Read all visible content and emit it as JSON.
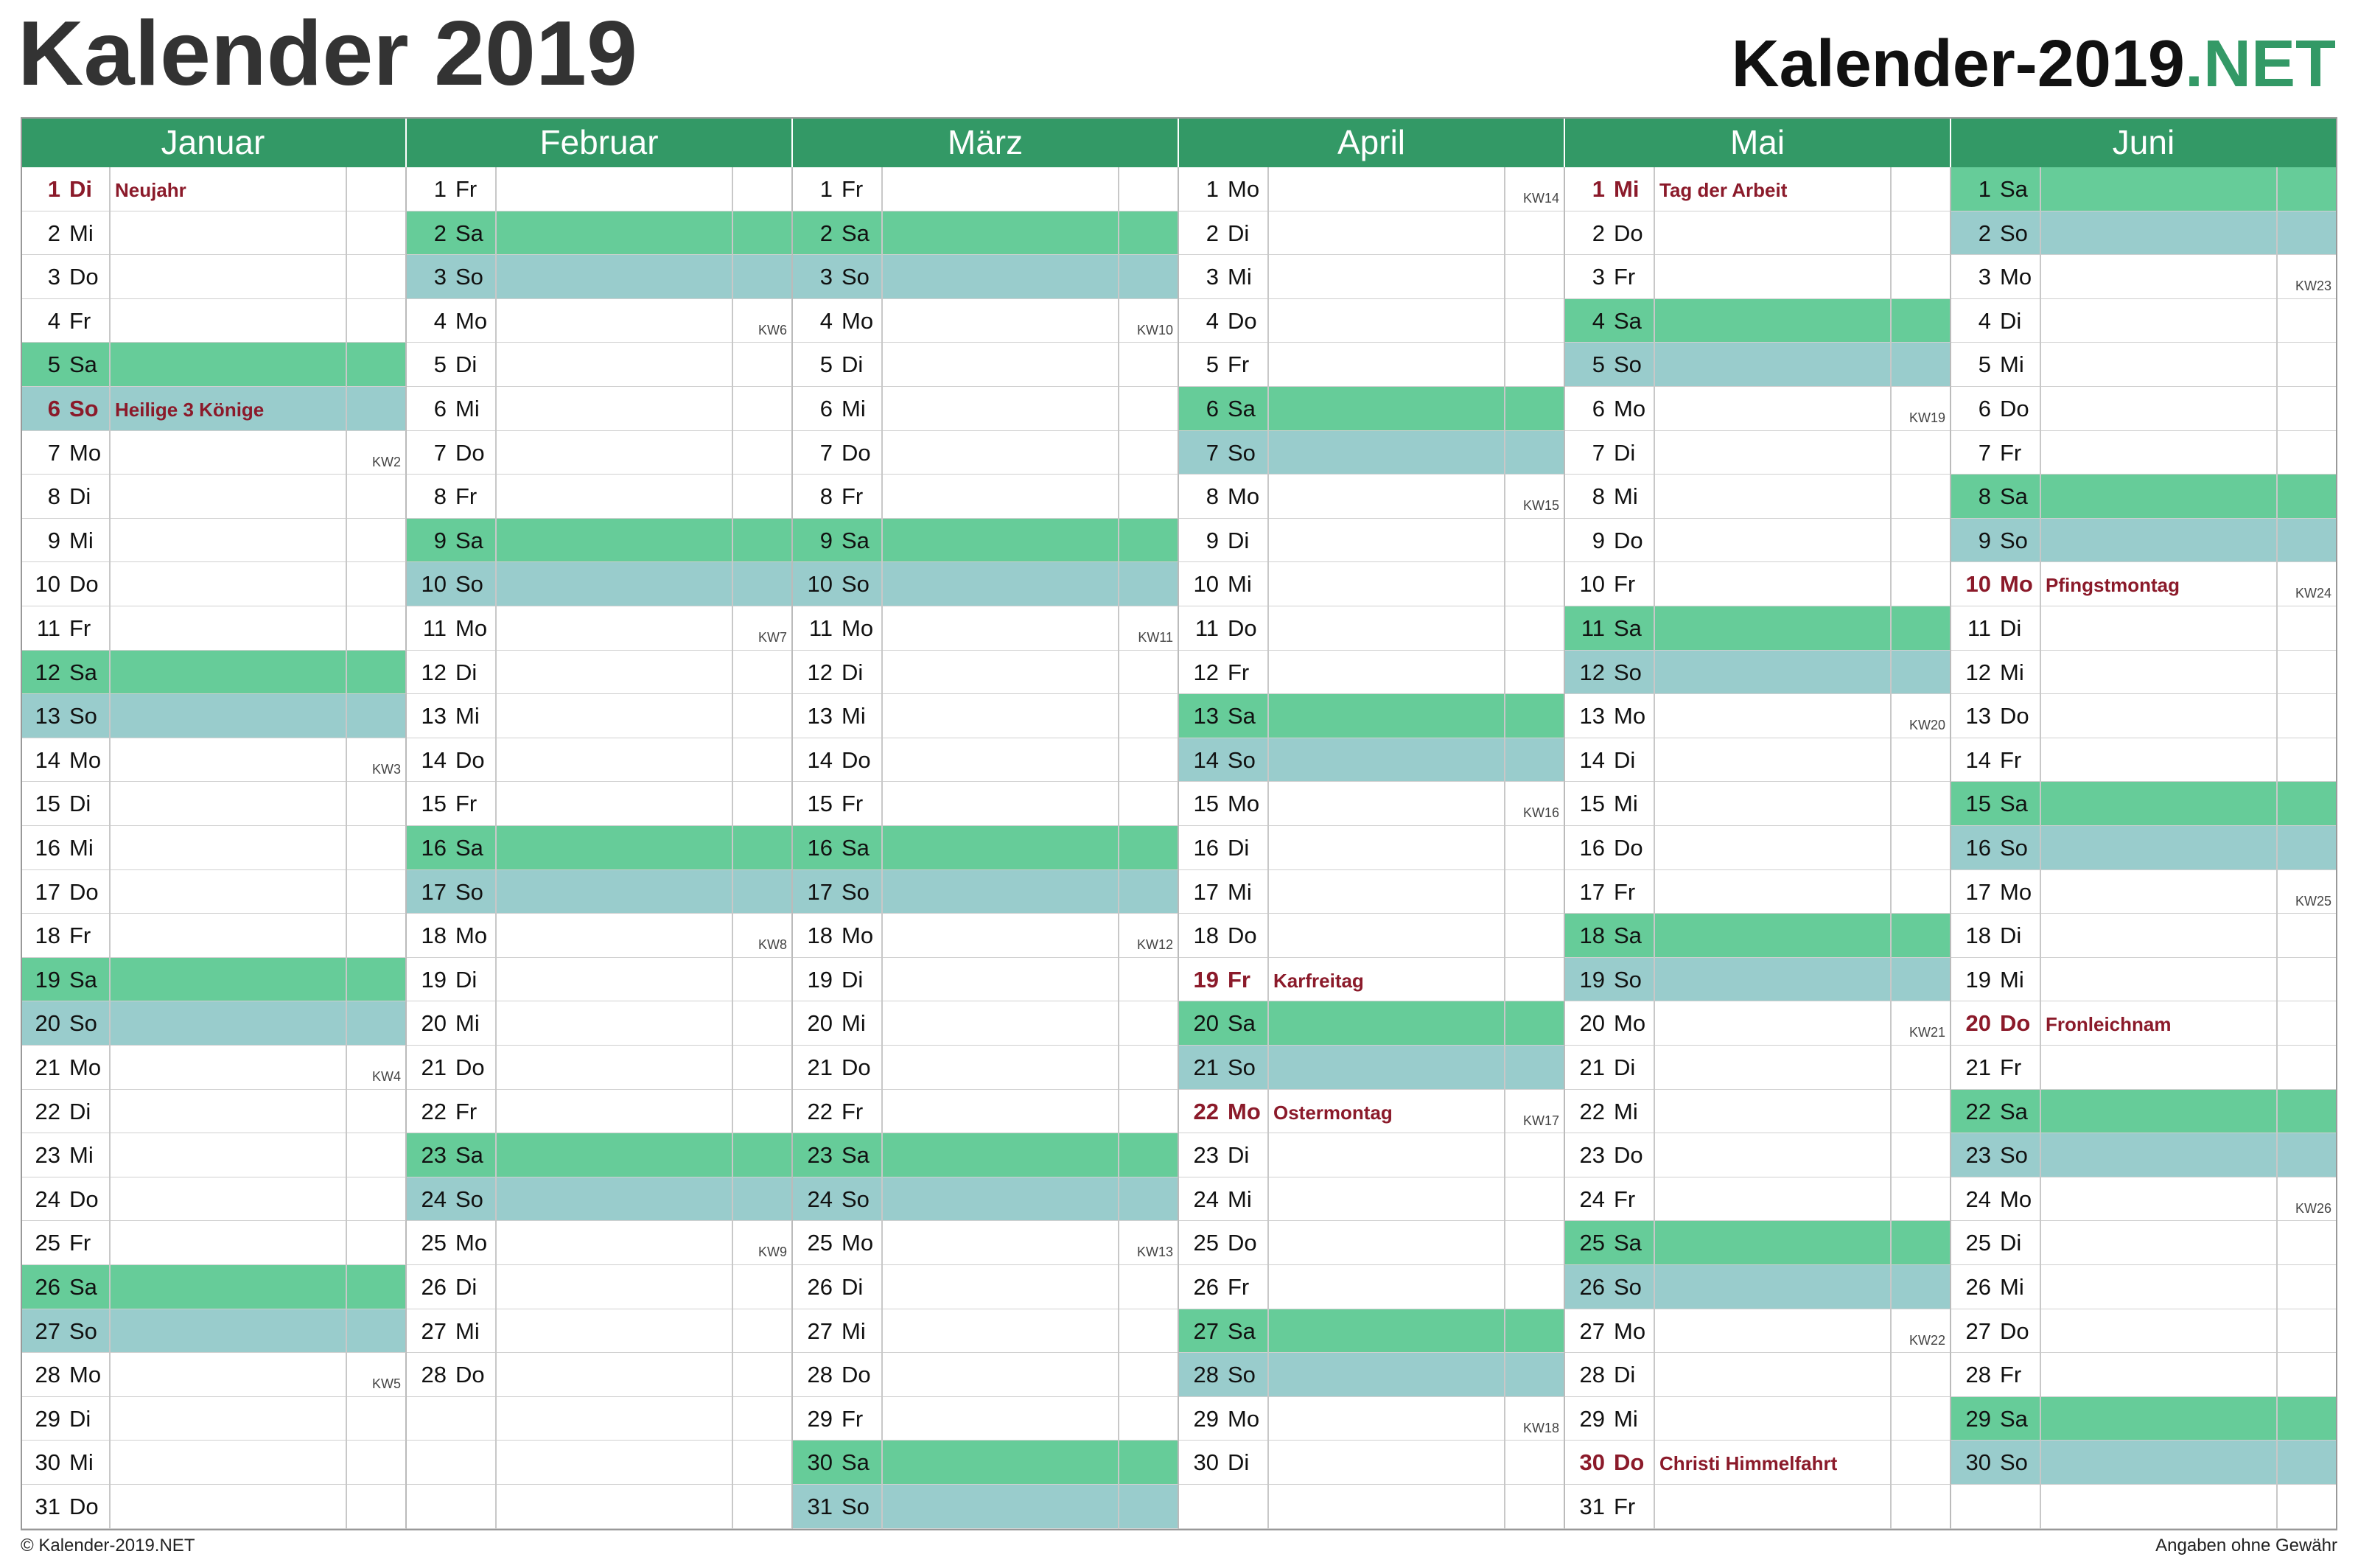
{
  "header": {
    "title": "Kalender 2019",
    "site": "Kalender-2019",
    "site_tld": ".NET"
  },
  "colors": {
    "header": "#339966",
    "holiday": "#8b1a2a",
    "weekend": {
      "Sa": "#66cc99",
      "So": "#99cccc"
    }
  },
  "months": [
    {
      "name": "Januar",
      "days": [
        {
          "d": 1,
          "wd": "Di",
          "h": "Neujahr"
        },
        {
          "d": 2,
          "wd": "Mi"
        },
        {
          "d": 3,
          "wd": "Do"
        },
        {
          "d": 4,
          "wd": "Fr"
        },
        {
          "d": 5,
          "wd": "Sa"
        },
        {
          "d": 6,
          "wd": "So",
          "h": "Heilige 3 Könige"
        },
        {
          "d": 7,
          "wd": "Mo",
          "kw": "KW2"
        },
        {
          "d": 8,
          "wd": "Di"
        },
        {
          "d": 9,
          "wd": "Mi"
        },
        {
          "d": 10,
          "wd": "Do"
        },
        {
          "d": 11,
          "wd": "Fr"
        },
        {
          "d": 12,
          "wd": "Sa"
        },
        {
          "d": 13,
          "wd": "So"
        },
        {
          "d": 14,
          "wd": "Mo",
          "kw": "KW3"
        },
        {
          "d": 15,
          "wd": "Di"
        },
        {
          "d": 16,
          "wd": "Mi"
        },
        {
          "d": 17,
          "wd": "Do"
        },
        {
          "d": 18,
          "wd": "Fr"
        },
        {
          "d": 19,
          "wd": "Sa"
        },
        {
          "d": 20,
          "wd": "So"
        },
        {
          "d": 21,
          "wd": "Mo",
          "kw": "KW4"
        },
        {
          "d": 22,
          "wd": "Di"
        },
        {
          "d": 23,
          "wd": "Mi"
        },
        {
          "d": 24,
          "wd": "Do"
        },
        {
          "d": 25,
          "wd": "Fr"
        },
        {
          "d": 26,
          "wd": "Sa"
        },
        {
          "d": 27,
          "wd": "So"
        },
        {
          "d": 28,
          "wd": "Mo",
          "kw": "KW5"
        },
        {
          "d": 29,
          "wd": "Di"
        },
        {
          "d": 30,
          "wd": "Mi"
        },
        {
          "d": 31,
          "wd": "Do"
        }
      ]
    },
    {
      "name": "Februar",
      "days": [
        {
          "d": 1,
          "wd": "Fr"
        },
        {
          "d": 2,
          "wd": "Sa"
        },
        {
          "d": 3,
          "wd": "So"
        },
        {
          "d": 4,
          "wd": "Mo",
          "kw": "KW6"
        },
        {
          "d": 5,
          "wd": "Di"
        },
        {
          "d": 6,
          "wd": "Mi"
        },
        {
          "d": 7,
          "wd": "Do"
        },
        {
          "d": 8,
          "wd": "Fr"
        },
        {
          "d": 9,
          "wd": "Sa"
        },
        {
          "d": 10,
          "wd": "So"
        },
        {
          "d": 11,
          "wd": "Mo",
          "kw": "KW7"
        },
        {
          "d": 12,
          "wd": "Di"
        },
        {
          "d": 13,
          "wd": "Mi"
        },
        {
          "d": 14,
          "wd": "Do"
        },
        {
          "d": 15,
          "wd": "Fr"
        },
        {
          "d": 16,
          "wd": "Sa"
        },
        {
          "d": 17,
          "wd": "So"
        },
        {
          "d": 18,
          "wd": "Mo",
          "kw": "KW8"
        },
        {
          "d": 19,
          "wd": "Di"
        },
        {
          "d": 20,
          "wd": "Mi"
        },
        {
          "d": 21,
          "wd": "Do"
        },
        {
          "d": 22,
          "wd": "Fr"
        },
        {
          "d": 23,
          "wd": "Sa"
        },
        {
          "d": 24,
          "wd": "So"
        },
        {
          "d": 25,
          "wd": "Mo",
          "kw": "KW9"
        },
        {
          "d": 26,
          "wd": "Di"
        },
        {
          "d": 27,
          "wd": "Mi"
        },
        {
          "d": 28,
          "wd": "Do"
        }
      ]
    },
    {
      "name": "März",
      "days": [
        {
          "d": 1,
          "wd": "Fr"
        },
        {
          "d": 2,
          "wd": "Sa"
        },
        {
          "d": 3,
          "wd": "So"
        },
        {
          "d": 4,
          "wd": "Mo",
          "kw": "KW10"
        },
        {
          "d": 5,
          "wd": "Di"
        },
        {
          "d": 6,
          "wd": "Mi"
        },
        {
          "d": 7,
          "wd": "Do"
        },
        {
          "d": 8,
          "wd": "Fr"
        },
        {
          "d": 9,
          "wd": "Sa"
        },
        {
          "d": 10,
          "wd": "So"
        },
        {
          "d": 11,
          "wd": "Mo",
          "kw": "KW11"
        },
        {
          "d": 12,
          "wd": "Di"
        },
        {
          "d": 13,
          "wd": "Mi"
        },
        {
          "d": 14,
          "wd": "Do"
        },
        {
          "d": 15,
          "wd": "Fr"
        },
        {
          "d": 16,
          "wd": "Sa"
        },
        {
          "d": 17,
          "wd": "So"
        },
        {
          "d": 18,
          "wd": "Mo",
          "kw": "KW12"
        },
        {
          "d": 19,
          "wd": "Di"
        },
        {
          "d": 20,
          "wd": "Mi"
        },
        {
          "d": 21,
          "wd": "Do"
        },
        {
          "d": 22,
          "wd": "Fr"
        },
        {
          "d": 23,
          "wd": "Sa"
        },
        {
          "d": 24,
          "wd": "So"
        },
        {
          "d": 25,
          "wd": "Mo",
          "kw": "KW13"
        },
        {
          "d": 26,
          "wd": "Di"
        },
        {
          "d": 27,
          "wd": "Mi"
        },
        {
          "d": 28,
          "wd": "Do"
        },
        {
          "d": 29,
          "wd": "Fr"
        },
        {
          "d": 30,
          "wd": "Sa"
        },
        {
          "d": 31,
          "wd": "So"
        }
      ]
    },
    {
      "name": "April",
      "days": [
        {
          "d": 1,
          "wd": "Mo",
          "kw": "KW14"
        },
        {
          "d": 2,
          "wd": "Di"
        },
        {
          "d": 3,
          "wd": "Mi"
        },
        {
          "d": 4,
          "wd": "Do"
        },
        {
          "d": 5,
          "wd": "Fr"
        },
        {
          "d": 6,
          "wd": "Sa"
        },
        {
          "d": 7,
          "wd": "So"
        },
        {
          "d": 8,
          "wd": "Mo",
          "kw": "KW15"
        },
        {
          "d": 9,
          "wd": "Di"
        },
        {
          "d": 10,
          "wd": "Mi"
        },
        {
          "d": 11,
          "wd": "Do"
        },
        {
          "d": 12,
          "wd": "Fr"
        },
        {
          "d": 13,
          "wd": "Sa"
        },
        {
          "d": 14,
          "wd": "So"
        },
        {
          "d": 15,
          "wd": "Mo",
          "kw": "KW16"
        },
        {
          "d": 16,
          "wd": "Di"
        },
        {
          "d": 17,
          "wd": "Mi"
        },
        {
          "d": 18,
          "wd": "Do"
        },
        {
          "d": 19,
          "wd": "Fr",
          "h": "Karfreitag"
        },
        {
          "d": 20,
          "wd": "Sa"
        },
        {
          "d": 21,
          "wd": "So"
        },
        {
          "d": 22,
          "wd": "Mo",
          "h": "Ostermontag",
          "kw": "KW17"
        },
        {
          "d": 23,
          "wd": "Di"
        },
        {
          "d": 24,
          "wd": "Mi"
        },
        {
          "d": 25,
          "wd": "Do"
        },
        {
          "d": 26,
          "wd": "Fr"
        },
        {
          "d": 27,
          "wd": "Sa"
        },
        {
          "d": 28,
          "wd": "So"
        },
        {
          "d": 29,
          "wd": "Mo",
          "kw": "KW18"
        },
        {
          "d": 30,
          "wd": "Di"
        }
      ]
    },
    {
      "name": "Mai",
      "days": [
        {
          "d": 1,
          "wd": "Mi",
          "h": "Tag der Arbeit"
        },
        {
          "d": 2,
          "wd": "Do"
        },
        {
          "d": 3,
          "wd": "Fr"
        },
        {
          "d": 4,
          "wd": "Sa"
        },
        {
          "d": 5,
          "wd": "So"
        },
        {
          "d": 6,
          "wd": "Mo",
          "kw": "KW19"
        },
        {
          "d": 7,
          "wd": "Di"
        },
        {
          "d": 8,
          "wd": "Mi"
        },
        {
          "d": 9,
          "wd": "Do"
        },
        {
          "d": 10,
          "wd": "Fr"
        },
        {
          "d": 11,
          "wd": "Sa"
        },
        {
          "d": 12,
          "wd": "So"
        },
        {
          "d": 13,
          "wd": "Mo",
          "kw": "KW20"
        },
        {
          "d": 14,
          "wd": "Di"
        },
        {
          "d": 15,
          "wd": "Mi"
        },
        {
          "d": 16,
          "wd": "Do"
        },
        {
          "d": 17,
          "wd": "Fr"
        },
        {
          "d": 18,
          "wd": "Sa"
        },
        {
          "d": 19,
          "wd": "So"
        },
        {
          "d": 20,
          "wd": "Mo",
          "kw": "KW21"
        },
        {
          "d": 21,
          "wd": "Di"
        },
        {
          "d": 22,
          "wd": "Mi"
        },
        {
          "d": 23,
          "wd": "Do"
        },
        {
          "d": 24,
          "wd": "Fr"
        },
        {
          "d": 25,
          "wd": "Sa"
        },
        {
          "d": 26,
          "wd": "So"
        },
        {
          "d": 27,
          "wd": "Mo",
          "kw": "KW22"
        },
        {
          "d": 28,
          "wd": "Di"
        },
        {
          "d": 29,
          "wd": "Mi"
        },
        {
          "d": 30,
          "wd": "Do",
          "h": "Christi Himmelfahrt"
        },
        {
          "d": 31,
          "wd": "Fr"
        }
      ]
    },
    {
      "name": "Juni",
      "days": [
        {
          "d": 1,
          "wd": "Sa"
        },
        {
          "d": 2,
          "wd": "So"
        },
        {
          "d": 3,
          "wd": "Mo",
          "kw": "KW23"
        },
        {
          "d": 4,
          "wd": "Di"
        },
        {
          "d": 5,
          "wd": "Mi"
        },
        {
          "d": 6,
          "wd": "Do"
        },
        {
          "d": 7,
          "wd": "Fr"
        },
        {
          "d": 8,
          "wd": "Sa"
        },
        {
          "d": 9,
          "wd": "So"
        },
        {
          "d": 10,
          "wd": "Mo",
          "h": "Pfingstmontag",
          "kw": "KW24"
        },
        {
          "d": 11,
          "wd": "Di"
        },
        {
          "d": 12,
          "wd": "Mi"
        },
        {
          "d": 13,
          "wd": "Do"
        },
        {
          "d": 14,
          "wd": "Fr"
        },
        {
          "d": 15,
          "wd": "Sa"
        },
        {
          "d": 16,
          "wd": "So"
        },
        {
          "d": 17,
          "wd": "Mo",
          "kw": "KW25"
        },
        {
          "d": 18,
          "wd": "Di"
        },
        {
          "d": 19,
          "wd": "Mi"
        },
        {
          "d": 20,
          "wd": "Do",
          "h": "Fronleichnam"
        },
        {
          "d": 21,
          "wd": "Fr"
        },
        {
          "d": 22,
          "wd": "Sa"
        },
        {
          "d": 23,
          "wd": "So"
        },
        {
          "d": 24,
          "wd": "Mo",
          "kw": "KW26"
        },
        {
          "d": 25,
          "wd": "Di"
        },
        {
          "d": 26,
          "wd": "Mi"
        },
        {
          "d": 27,
          "wd": "Do"
        },
        {
          "d": 28,
          "wd": "Fr"
        },
        {
          "d": 29,
          "wd": "Sa"
        },
        {
          "d": 30,
          "wd": "So"
        }
      ]
    }
  ],
  "footer": {
    "left": "© Kalender-2019.NET",
    "right": "Angaben ohne Gewähr"
  }
}
